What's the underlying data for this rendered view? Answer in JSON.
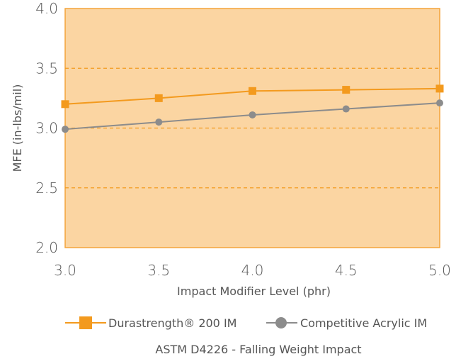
{
  "chart_data": {
    "type": "line",
    "x": [
      3.0,
      3.5,
      4.0,
      4.5,
      5.0
    ],
    "x_tick_labels": [
      "3.0",
      "3.5",
      "4.0",
      "4.5",
      "5.0"
    ],
    "y_tick_labels": [
      "2.0",
      "2.5",
      "3.0",
      "3.5",
      "4.0"
    ],
    "y_ticks": [
      2.0,
      2.5,
      3.0,
      3.5,
      4.0
    ],
    "xlim": [
      3.0,
      5.0
    ],
    "ylim": [
      2.0,
      4.0
    ],
    "xlabel": "Impact Modifier Level (phr)",
    "ylabel": "MFE (in-lbs/mil)",
    "caption": "ASTM D4226 - Falling Weight Impact",
    "grid": true,
    "legend_position": "bottom",
    "plot_background": "#fbd5a2",
    "series": [
      {
        "name": "Durastrength® 200 IM",
        "values": [
          3.2,
          3.25,
          3.31,
          3.32,
          3.33
        ],
        "color": "#f39a1e",
        "marker": "square"
      },
      {
        "name": "Competitive Acrylic IM",
        "values": [
          2.99,
          3.05,
          3.11,
          3.16,
          3.21
        ],
        "color": "#8c8c8c",
        "marker": "circle"
      }
    ]
  }
}
